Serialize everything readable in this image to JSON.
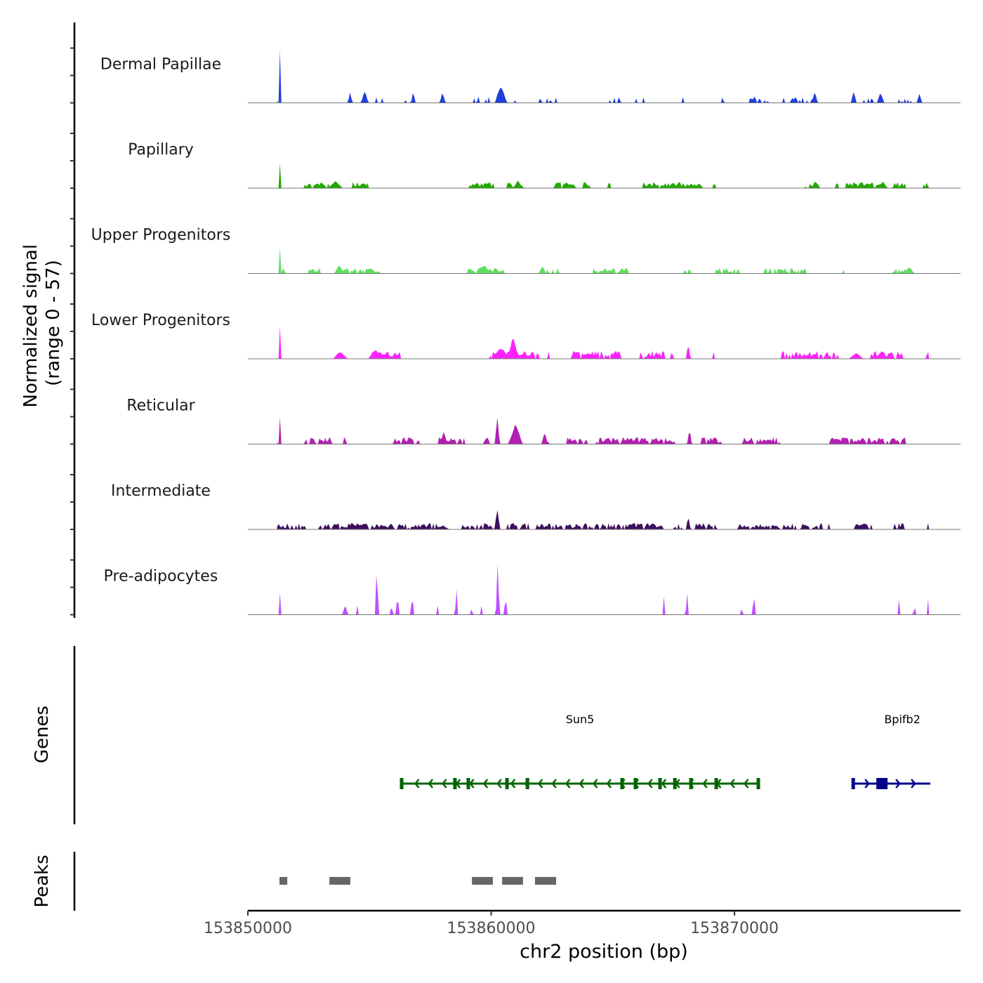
{
  "chart_data": {
    "type": "area",
    "title": "",
    "ylabel": "Normalized signal\n(range 0 - 57)",
    "ylabel_lines": [
      "Normalized signal",
      "(range 0 - 57)"
    ],
    "xlabel": "chr2 position (bp)",
    "chromosome": "chr2",
    "xlim": [
      153850000,
      153879290
    ],
    "ylim": [
      0,
      57
    ],
    "x_ticks": [
      153850000,
      153860000,
      153870000
    ],
    "x_tick_labels": [
      "153850000",
      "153860000",
      "153870000"
    ],
    "data_range_bp": [
      153851200,
      153878000
    ],
    "tracks": [
      {
        "name": "Dermal Papillae",
        "color": "#2040dd",
        "noise": 3.5,
        "coverage": 0.45,
        "seed": 11,
        "peaks": [
          [
            153851330,
            56,
            0.05
          ],
          [
            153860400,
            15,
            0.25
          ],
          [
            153854800,
            10,
            0.15
          ],
          [
            153854200,
            8,
            0.1
          ],
          [
            153856800,
            9,
            0.1
          ],
          [
            153858000,
            9,
            0.12
          ],
          [
            153873300,
            10,
            0.12
          ],
          [
            153874900,
            9,
            0.12
          ],
          [
            153876000,
            9,
            0.15
          ],
          [
            153877600,
            7,
            0.12
          ]
        ]
      },
      {
        "name": "Papillary",
        "color": "#22aa00",
        "noise": 3.5,
        "coverage": 0.92,
        "seed": 23,
        "peaks": [
          [
            153851330,
            25,
            0.05
          ],
          [
            153853600,
            6,
            0.3
          ],
          [
            153861100,
            6,
            0.2
          ],
          [
            153876100,
            5,
            0.2
          ]
        ]
      },
      {
        "name": "Upper Progenitors",
        "color": "#5de05d",
        "noise": 3.2,
        "coverage": 0.8,
        "seed": 37,
        "peaks": [
          [
            153851330,
            25,
            0.05
          ],
          [
            153853750,
            7,
            0.2
          ],
          [
            153859700,
            7,
            0.3
          ],
          [
            153862100,
            6,
            0.15
          ],
          [
            153877200,
            5,
            0.2
          ]
        ]
      },
      {
        "name": "Lower Progenitors",
        "color": "#ff22ff",
        "noise": 4.5,
        "coverage": 0.88,
        "seed": 41,
        "peaks": [
          [
            153851330,
            32,
            0.05
          ],
          [
            153860900,
            18,
            0.25
          ],
          [
            153860400,
            9,
            0.4
          ],
          [
            153855250,
            8,
            0.3
          ],
          [
            153853800,
            6,
            0.3
          ],
          [
            153868100,
            12,
            0.1
          ],
          [
            153875000,
            5,
            0.3
          ]
        ]
      },
      {
        "name": "Reticular",
        "color": "#b31fb3",
        "noise": 4.0,
        "coverage": 0.86,
        "seed": 53,
        "peaks": [
          [
            153851330,
            28,
            0.05
          ],
          [
            153860250,
            22,
            0.1
          ],
          [
            153861000,
            16,
            0.3
          ],
          [
            153858050,
            10,
            0.15
          ],
          [
            153862200,
            11,
            0.12
          ],
          [
            153868150,
            12,
            0.1
          ],
          [
            153876000,
            5,
            0.2
          ]
        ]
      },
      {
        "name": "Intermediate",
        "color": "#3d0f5e",
        "noise": 3.6,
        "coverage": 0.85,
        "seed": 67,
        "peaks": [
          [
            153860250,
            16,
            0.12
          ],
          [
            153868100,
            10,
            0.1
          ],
          [
            153866650,
            6,
            0.2
          ],
          [
            153858000,
            3,
            0.3
          ]
        ]
      },
      {
        "name": "Pre-adipocytes",
        "color": "#c050ff",
        "noise": 0,
        "coverage": 0,
        "seed": 79,
        "peaks": [
          [
            153851330,
            23,
            0.04
          ],
          [
            153855300,
            39,
            0.08
          ],
          [
            153856150,
            23,
            0.05
          ],
          [
            153856750,
            16,
            0.08
          ],
          [
            153858570,
            23,
            0.06
          ],
          [
            153860270,
            45,
            0.08
          ],
          [
            153860600,
            15,
            0.08
          ],
          [
            153867100,
            15,
            0.05
          ],
          [
            153868050,
            23,
            0.06
          ],
          [
            153870800,
            21,
            0.06
          ],
          [
            153876750,
            15,
            0.05
          ],
          [
            153877950,
            15,
            0.05
          ],
          [
            153854000,
            8,
            0.12
          ],
          [
            153854500,
            8,
            0.05
          ],
          [
            153855900,
            8,
            0.08
          ],
          [
            153857800,
            8,
            0.05
          ],
          [
            153859200,
            8,
            0.05
          ],
          [
            153859600,
            8,
            0.05
          ],
          [
            153870300,
            8,
            0.05
          ],
          [
            153877400,
            8,
            0.06
          ]
        ]
      }
    ],
    "genes_label": "Genes",
    "genes": [
      {
        "name": "Sun5",
        "strand": "-",
        "color": "#006400",
        "start": 153856320,
        "end": 153870980,
        "exons": [
          153856320,
          153858510,
          153859060,
          153860650,
          153861490,
          153865380,
          153865930,
          153866940,
          153867550,
          153868210,
          153869250,
          153870980
        ]
      },
      {
        "name": "Bpifb2",
        "strand": "+",
        "color": "#00008b",
        "start": 153874880,
        "end": 153878050,
        "exons": [
          153874880,
          153876060
        ]
      }
    ],
    "peaks_label": "Peaks",
    "peaks": [
      [
        153851300,
        153851620
      ],
      [
        153853350,
        153854210
      ],
      [
        153859210,
        153860070
      ],
      [
        153860450,
        153861310
      ],
      [
        153861800,
        153862670
      ]
    ]
  }
}
